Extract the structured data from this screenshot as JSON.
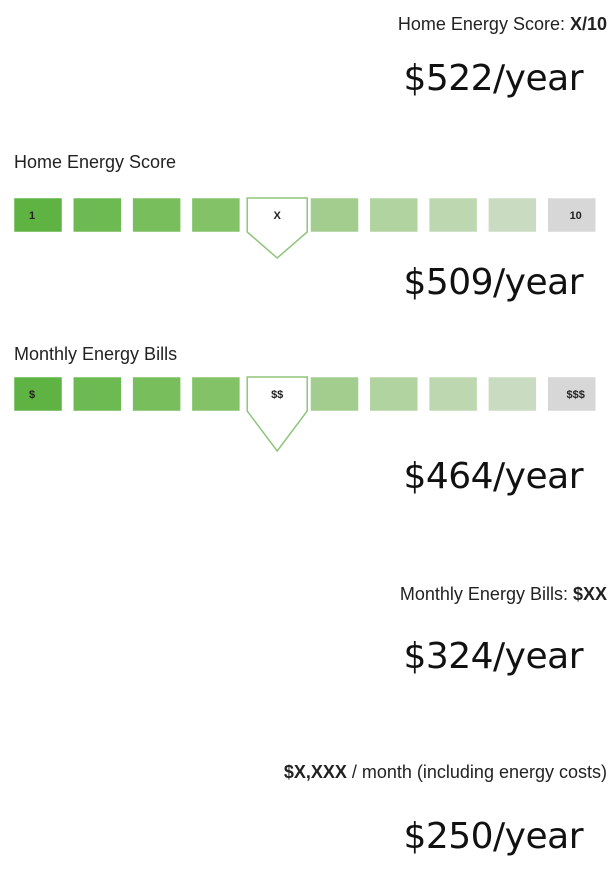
{
  "items": [
    {
      "label": "Home Energy Score:",
      "value": "X/10",
      "cost": "$522/year"
    },
    {
      "title": "Home Energy Score",
      "low": "1",
      "marker": "X",
      "high": "10",
      "cost": "$509/year"
    },
    {
      "title": "Monthly Energy Bills",
      "low": "$",
      "marker": "$$",
      "high": "$$$",
      "cost": "$464/year"
    },
    {
      "label": "Monthly Energy Bills:",
      "value": "$XX",
      "cost": "$324/year"
    },
    {
      "value": "$X,XXX",
      "label": "/ month (including energy costs)",
      "cost": "$250/year"
    }
  ]
}
